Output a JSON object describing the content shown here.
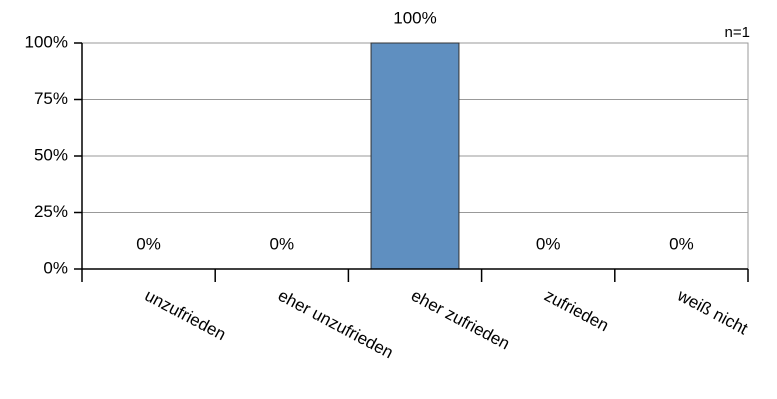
{
  "chart_data": {
    "type": "bar",
    "annotation": "n=1",
    "categories": [
      "unzufrieden",
      "eher unzufrieden",
      "eher zufrieden",
      "zufrieden",
      "weiß nicht"
    ],
    "values": [
      0,
      0,
      100,
      0,
      0
    ],
    "value_labels": [
      "0%",
      "0%",
      "100%",
      "0%",
      "0%"
    ],
    "color": "#5f8fc0",
    "ylim": [
      0,
      100
    ],
    "yticks": [
      {
        "value": 0,
        "label": "0%"
      },
      {
        "value": 25,
        "label": "25%"
      },
      {
        "value": 50,
        "label": "50%"
      },
      {
        "value": 75,
        "label": "75%"
      },
      {
        "value": 100,
        "label": "100%"
      }
    ],
    "grid": true
  }
}
